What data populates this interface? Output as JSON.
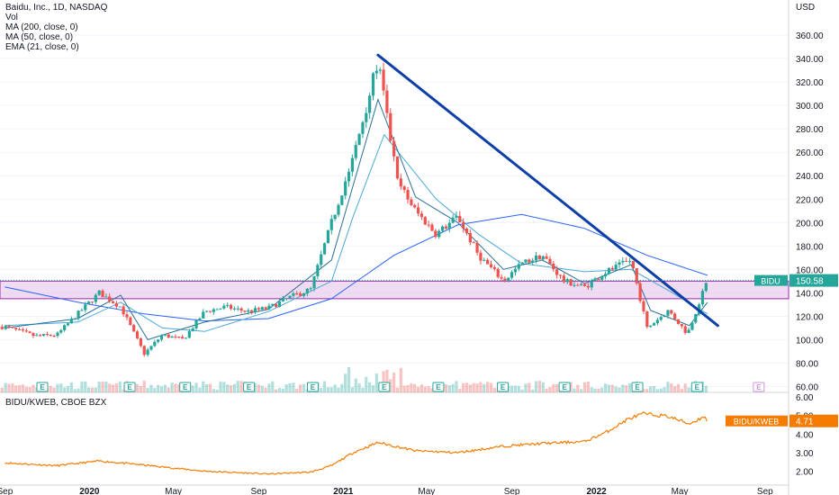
{
  "legend": {
    "title": "Baidu, Inc., 1D, NASDAQ",
    "items": [
      "Vol",
      "MA (200, close, 0)",
      "MA (50, close, 0)",
      "EMA (21, close, 0)"
    ]
  },
  "colors": {
    "up": "#26a69a",
    "down": "#ef5350",
    "trendline": "#0d3fa6",
    "ma200": "#2962ff",
    "ma50": "#4aa8d8",
    "ema21": "#2a6f97",
    "zone_fill": "#e1bee7",
    "zone_border": "#9c27b0",
    "price_tag": "#26a69a",
    "ratio_line": "#f57c00",
    "earnings": "#26a69a"
  },
  "chart_data": [
    {
      "type": "candlestick",
      "title": "Baidu, Inc., 1D, NASDAQ",
      "currency_label": "USD",
      "ylim": [
        55,
        390
      ],
      "y_ticks": [
        "360.00",
        "340.00",
        "320.00",
        "300.00",
        "280.00",
        "260.00",
        "240.00",
        "220.00",
        "200.00",
        "180.00",
        "160.00",
        "140.00",
        "120.00",
        "100.00",
        "80.00",
        "60.00"
      ],
      "x_ticks": [
        "Sep",
        "2020",
        "May",
        "Sep",
        "2021",
        "May",
        "Sep",
        "2022",
        "May",
        "Sep"
      ],
      "last_price": {
        "symbol": "BIDU",
        "value": "150.58"
      },
      "price_path": [
        [
          "2019-09-01",
          111
        ],
        [
          "2019-10-15",
          103
        ],
        [
          "2019-11-15",
          104
        ],
        [
          "2019-12-15",
          122
        ],
        [
          "2020-01-15",
          140
        ],
        [
          "2020-02-15",
          128
        ],
        [
          "2020-03-20",
          88
        ],
        [
          "2020-04-15",
          104
        ],
        [
          "2020-05-15",
          100
        ],
        [
          "2020-06-15",
          124
        ],
        [
          "2020-07-15",
          128
        ],
        [
          "2020-08-15",
          124
        ],
        [
          "2020-09-15",
          127
        ],
        [
          "2020-10-15",
          136
        ],
        [
          "2020-11-15",
          143
        ],
        [
          "2020-12-15",
          200
        ],
        [
          "2021-01-15",
          255
        ],
        [
          "2021-02-20",
          338
        ],
        [
          "2021-03-20",
          235
        ],
        [
          "2021-04-15",
          210
        ],
        [
          "2021-05-15",
          190
        ],
        [
          "2021-06-15",
          205
        ],
        [
          "2021-07-15",
          172
        ],
        [
          "2021-08-20",
          150
        ],
        [
          "2021-09-15",
          165
        ],
        [
          "2021-10-15",
          172
        ],
        [
          "2021-11-15",
          150
        ],
        [
          "2021-12-15",
          145
        ],
        [
          "2022-01-15",
          158
        ],
        [
          "2022-02-20",
          168
        ],
        [
          "2022-03-15",
          110
        ],
        [
          "2022-04-15",
          125
        ],
        [
          "2022-05-12",
          105
        ],
        [
          "2022-06-10",
          150.58
        ]
      ],
      "ma200_path": [
        [
          "2019-09-01",
          145
        ],
        [
          "2019-12-15",
          132
        ],
        [
          "2020-03-20",
          122
        ],
        [
          "2020-06-15",
          116
        ],
        [
          "2020-09-15",
          118
        ],
        [
          "2020-12-15",
          135
        ],
        [
          "2021-03-15",
          172
        ],
        [
          "2021-06-15",
          198
        ],
        [
          "2021-09-15",
          207
        ],
        [
          "2021-12-15",
          195
        ],
        [
          "2022-03-15",
          172
        ],
        [
          "2022-06-10",
          155
        ]
      ],
      "ma50_path": [
        [
          "2019-09-01",
          112
        ],
        [
          "2019-12-15",
          115
        ],
        [
          "2020-02-15",
          132
        ],
        [
          "2020-04-15",
          110
        ],
        [
          "2020-06-15",
          107
        ],
        [
          "2020-09-15",
          124
        ],
        [
          "2020-12-15",
          150
        ],
        [
          "2021-01-15",
          205
        ],
        [
          "2021-03-01",
          275
        ],
        [
          "2021-05-15",
          220
        ],
        [
          "2021-07-15",
          190
        ],
        [
          "2021-09-15",
          165
        ],
        [
          "2021-12-15",
          158
        ],
        [
          "2022-02-20",
          160
        ],
        [
          "2022-04-15",
          142
        ],
        [
          "2022-06-10",
          122
        ]
      ],
      "ema21_path": [
        [
          "2019-09-01",
          110
        ],
        [
          "2019-12-15",
          118
        ],
        [
          "2020-02-15",
          138
        ],
        [
          "2020-03-25",
          100
        ],
        [
          "2020-06-15",
          115
        ],
        [
          "2020-09-15",
          126
        ],
        [
          "2020-12-15",
          168
        ],
        [
          "2021-02-20",
          305
        ],
        [
          "2021-04-15",
          222
        ],
        [
          "2021-06-15",
          200
        ],
        [
          "2021-08-20",
          160
        ],
        [
          "2021-10-15",
          168
        ],
        [
          "2021-12-15",
          148
        ],
        [
          "2022-02-20",
          164
        ],
        [
          "2022-03-20",
          125
        ],
        [
          "2022-05-15",
          112
        ],
        [
          "2022-06-10",
          132
        ]
      ],
      "support_zone": [
        135,
        150
      ],
      "trendline": [
        [
          "2021-02-20",
          343
        ],
        [
          "2022-06-25",
          112
        ]
      ],
      "earnings_dates": [
        "2019-10-25",
        "2020-02-28",
        "2020-05-18",
        "2020-08-18",
        "2020-11-18",
        "2021-03-01",
        "2021-05-18",
        "2021-08-19",
        "2021-11-16",
        "2022-03-01",
        "2022-05-26",
        "2022-08-23"
      ]
    },
    {
      "type": "line",
      "title": "BIDU/KWEB, CBOE BZX",
      "ylim": [
        1.3,
        6.2
      ],
      "y_ticks": [
        "6.00",
        "5.00",
        "4.00",
        "3.00",
        "2.00"
      ],
      "last_value": {
        "symbol": "BIDU/KWEB",
        "value": "4.71"
      },
      "path": [
        [
          "2019-09-01",
          2.45
        ],
        [
          "2019-11-15",
          2.3
        ],
        [
          "2020-01-15",
          2.55
        ],
        [
          "2020-03-15",
          2.35
        ],
        [
          "2020-06-15",
          2.0
        ],
        [
          "2020-09-15",
          1.85
        ],
        [
          "2020-11-15",
          1.95
        ],
        [
          "2020-12-15",
          2.3
        ],
        [
          "2021-01-15",
          3.0
        ],
        [
          "2021-02-20",
          3.55
        ],
        [
          "2021-04-15",
          3.1
        ],
        [
          "2021-06-15",
          3.0
        ],
        [
          "2021-08-20",
          3.35
        ],
        [
          "2021-10-15",
          3.5
        ],
        [
          "2021-12-15",
          3.6
        ],
        [
          "2022-01-15",
          4.1
        ],
        [
          "2022-02-15",
          4.8
        ],
        [
          "2022-03-10",
          5.1
        ],
        [
          "2022-04-15",
          4.95
        ],
        [
          "2022-05-15",
          4.55
        ],
        [
          "2022-06-05",
          4.95
        ],
        [
          "2022-06-10",
          4.71
        ]
      ]
    }
  ]
}
